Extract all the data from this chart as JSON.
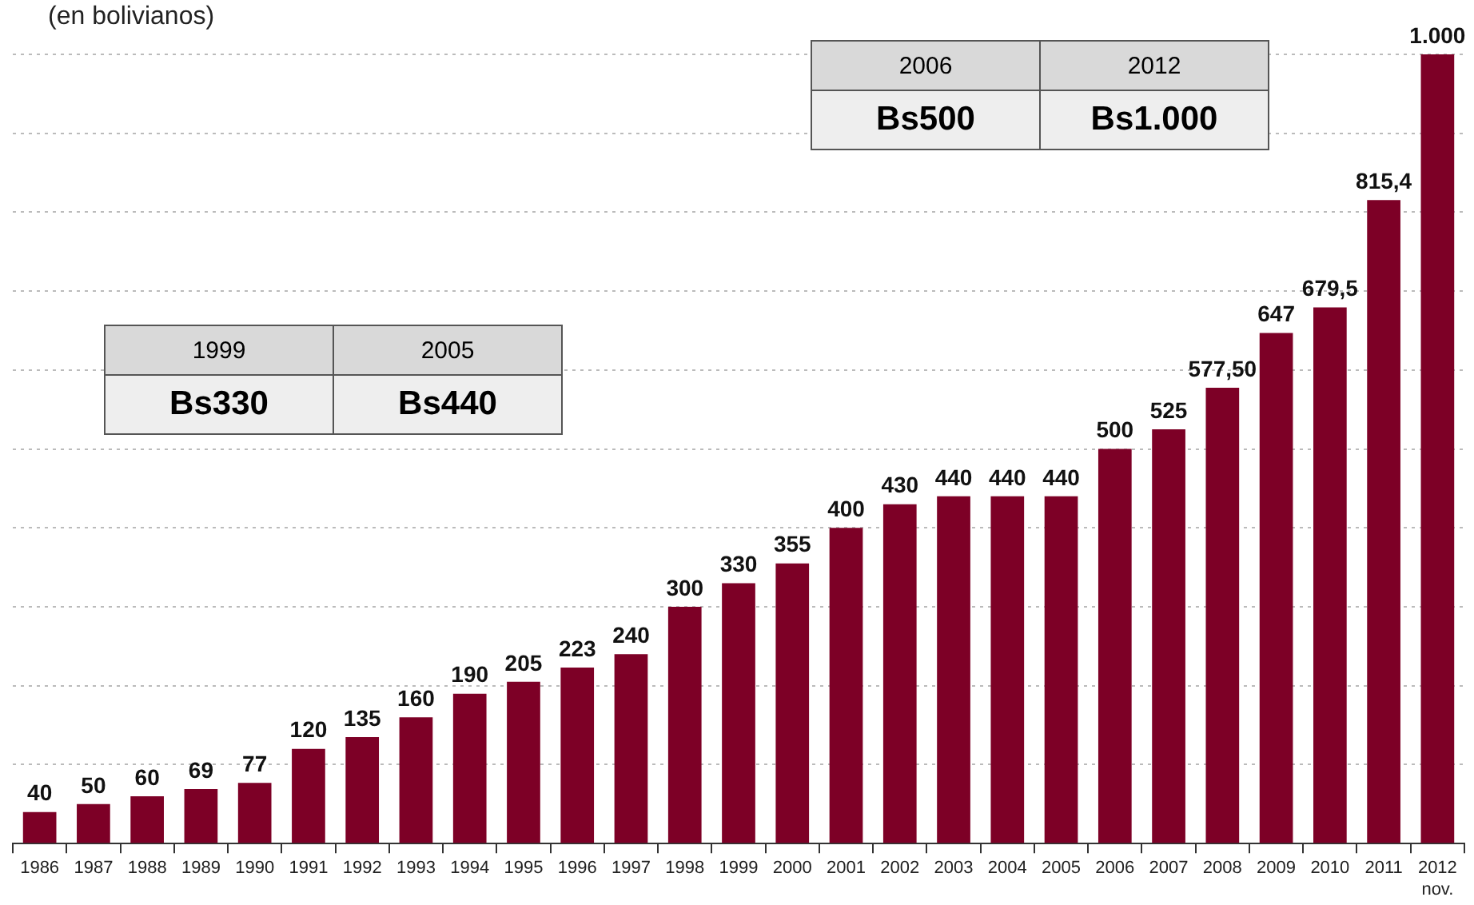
{
  "chart_data": {
    "type": "bar",
    "subtitle": "(en bolivianos)",
    "categories": [
      "1986",
      "1987",
      "1988",
      "1989",
      "1990",
      "1991",
      "1992",
      "1993",
      "1994",
      "1995",
      "1996",
      "1997",
      "1998",
      "1999",
      "2000",
      "2001",
      "2002",
      "2003",
      "2004",
      "2005",
      "2006",
      "2007",
      "2008",
      "2009",
      "2010",
      "2011",
      "2012\nnov."
    ],
    "values": [
      40,
      50,
      60,
      69,
      77,
      120,
      135,
      160,
      190,
      205,
      223,
      240,
      300,
      330,
      355,
      400,
      430,
      440,
      440,
      440,
      500,
      525,
      577.5,
      647,
      679.5,
      815.4,
      1000
    ],
    "value_labels": [
      "40",
      "50",
      "60",
      "69",
      "77",
      "120",
      "135",
      "160",
      "190",
      "205",
      "223",
      "240",
      "300",
      "330",
      "355",
      "400",
      "430",
      "440",
      "440",
      "440",
      "500",
      "525",
      "577,50",
      "647",
      "679,5",
      "815,4",
      "1.000"
    ],
    "color": "#7d0026",
    "ylim": [
      0,
      1000
    ],
    "yticks": [
      {
        "value": 0,
        "label": null
      },
      {
        "value": 100,
        "label": null
      },
      {
        "value": 200,
        "label": null
      },
      {
        "value": 300,
        "label": null
      },
      {
        "value": 400,
        "label": null
      },
      {
        "value": 500,
        "label": null
      },
      {
        "value": 600,
        "label": null
      },
      {
        "value": 700,
        "label": null
      },
      {
        "value": 800,
        "label": null
      },
      {
        "value": 900,
        "label": null
      },
      {
        "value": 1000,
        "label": null
      }
    ],
    "tick_labels": "x",
    "grid": "y",
    "legend": false,
    "annotations": [
      "1999",
      "2005",
      "Bs330",
      "Bs440",
      "2006",
      "2012",
      "Bs500",
      "Bs1.000"
    ]
  }
}
